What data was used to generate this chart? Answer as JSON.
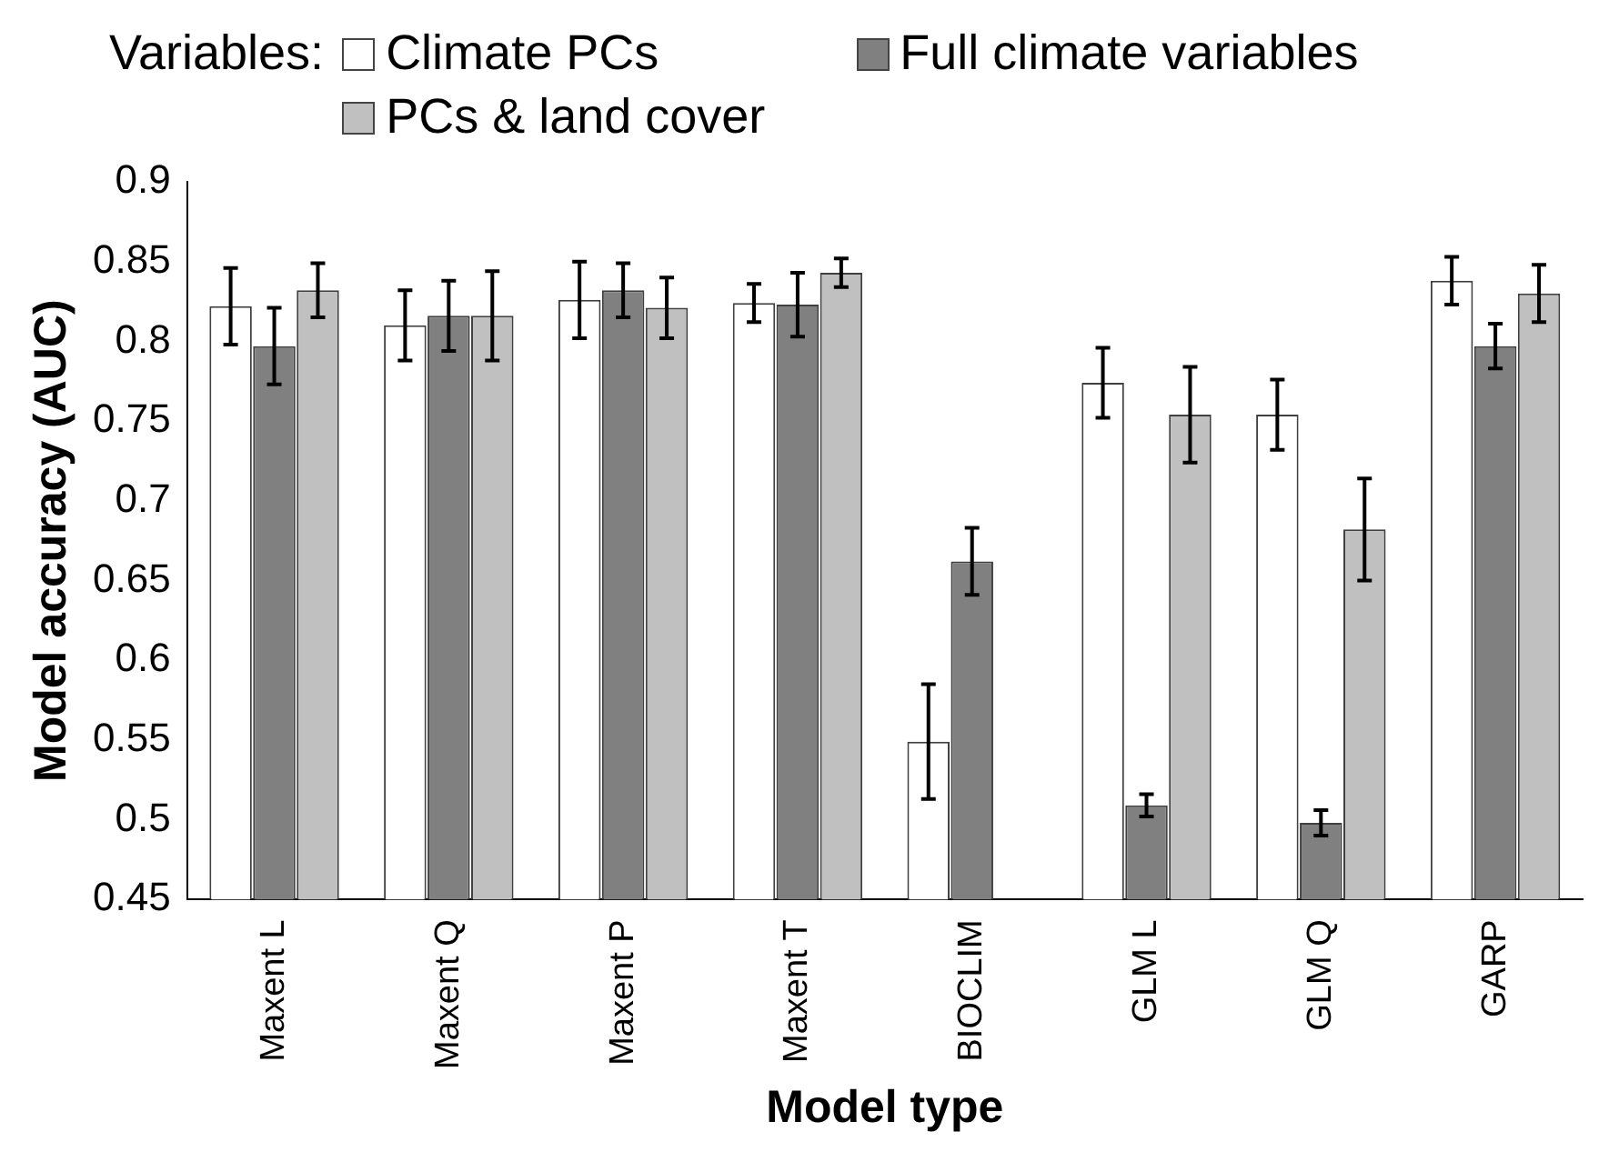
{
  "chart_data": {
    "type": "bar",
    "xlabel": "Model type",
    "ylabel": "Model accuracy (AUC)",
    "legend_title": "Variables:",
    "legend": "top",
    "grid": false,
    "categories": [
      "Maxent L",
      "Maxent Q",
      "Maxent P",
      "Maxent T",
      "BIOCLIM",
      "GLM L",
      "GLM Q",
      "GARP"
    ],
    "ylim": [
      0.45,
      0.9
    ],
    "yticks": [
      0.45,
      0.5,
      0.55,
      0.6,
      0.65,
      0.7,
      0.75,
      0.8,
      0.85,
      0.9
    ],
    "series": [
      {
        "name": "Climate PCs",
        "color": "#ffffff",
        "values": [
          0.822,
          0.81,
          0.826,
          0.824,
          0.549,
          0.774,
          0.754,
          0.838
        ],
        "errors": [
          0.024,
          0.022,
          0.024,
          0.012,
          0.036,
          0.022,
          0.022,
          0.015
        ]
      },
      {
        "name": "Full climate variables",
        "color": "#808080",
        "values": [
          0.797,
          0.816,
          0.832,
          0.823,
          0.662,
          0.509,
          0.498,
          0.797
        ],
        "errors": [
          0.024,
          0.022,
          0.017,
          0.02,
          0.021,
          0.007,
          0.008,
          0.014
        ]
      },
      {
        "name": "PCs & land cover",
        "color": "#c0c0c0",
        "values": [
          0.832,
          0.816,
          0.821,
          0.843,
          null,
          0.754,
          0.682,
          0.83
        ],
        "errors": [
          0.017,
          0.028,
          0.019,
          0.009,
          null,
          0.03,
          0.032,
          0.018
        ]
      }
    ]
  }
}
